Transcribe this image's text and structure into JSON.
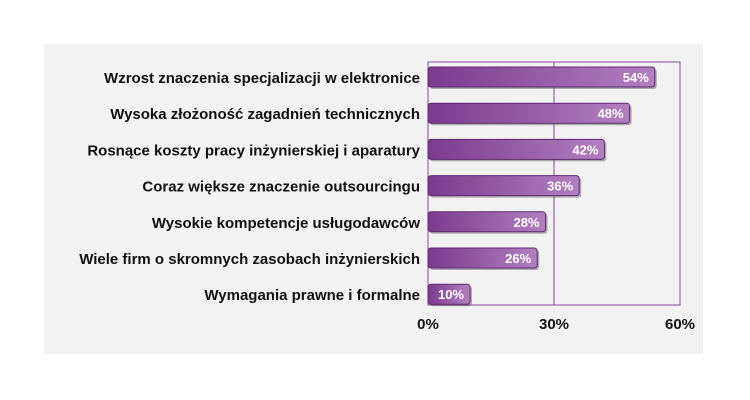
{
  "chart_data": {
    "type": "bar",
    "orientation": "horizontal",
    "categories": [
      "Wzrost znaczenia specjalizacji w elektronice",
      "Wysoka złożoność zagadnień technicznych",
      "Rosnące koszty pracy inżynierskiej i aparatury",
      "Coraz większe znaczenie outsourcingu",
      "Wysokie kompetencje usługodawców",
      "Wiele firm o skromnych zasobach inżynierskich",
      "Wymagania prawne i formalne"
    ],
    "values": [
      54,
      48,
      42,
      36,
      28,
      26,
      10
    ],
    "value_labels": [
      "54%",
      "48%",
      "42%",
      "36%",
      "28%",
      "26%",
      "10%"
    ],
    "xlim": [
      0,
      60
    ],
    "xticks": [
      0,
      30,
      60
    ],
    "xtick_labels": [
      "0%",
      "30%",
      "60%"
    ],
    "title": "",
    "xlabel": "",
    "ylabel": "",
    "grid": true,
    "legend": "none",
    "colors": {
      "bar_light": "#b27fc0",
      "bar_dark": "#7b3a8f",
      "bar_stroke": "#5e2a70",
      "axis": "#8a4a9a",
      "text": "#111111",
      "panel": "#f2f2f2"
    }
  }
}
